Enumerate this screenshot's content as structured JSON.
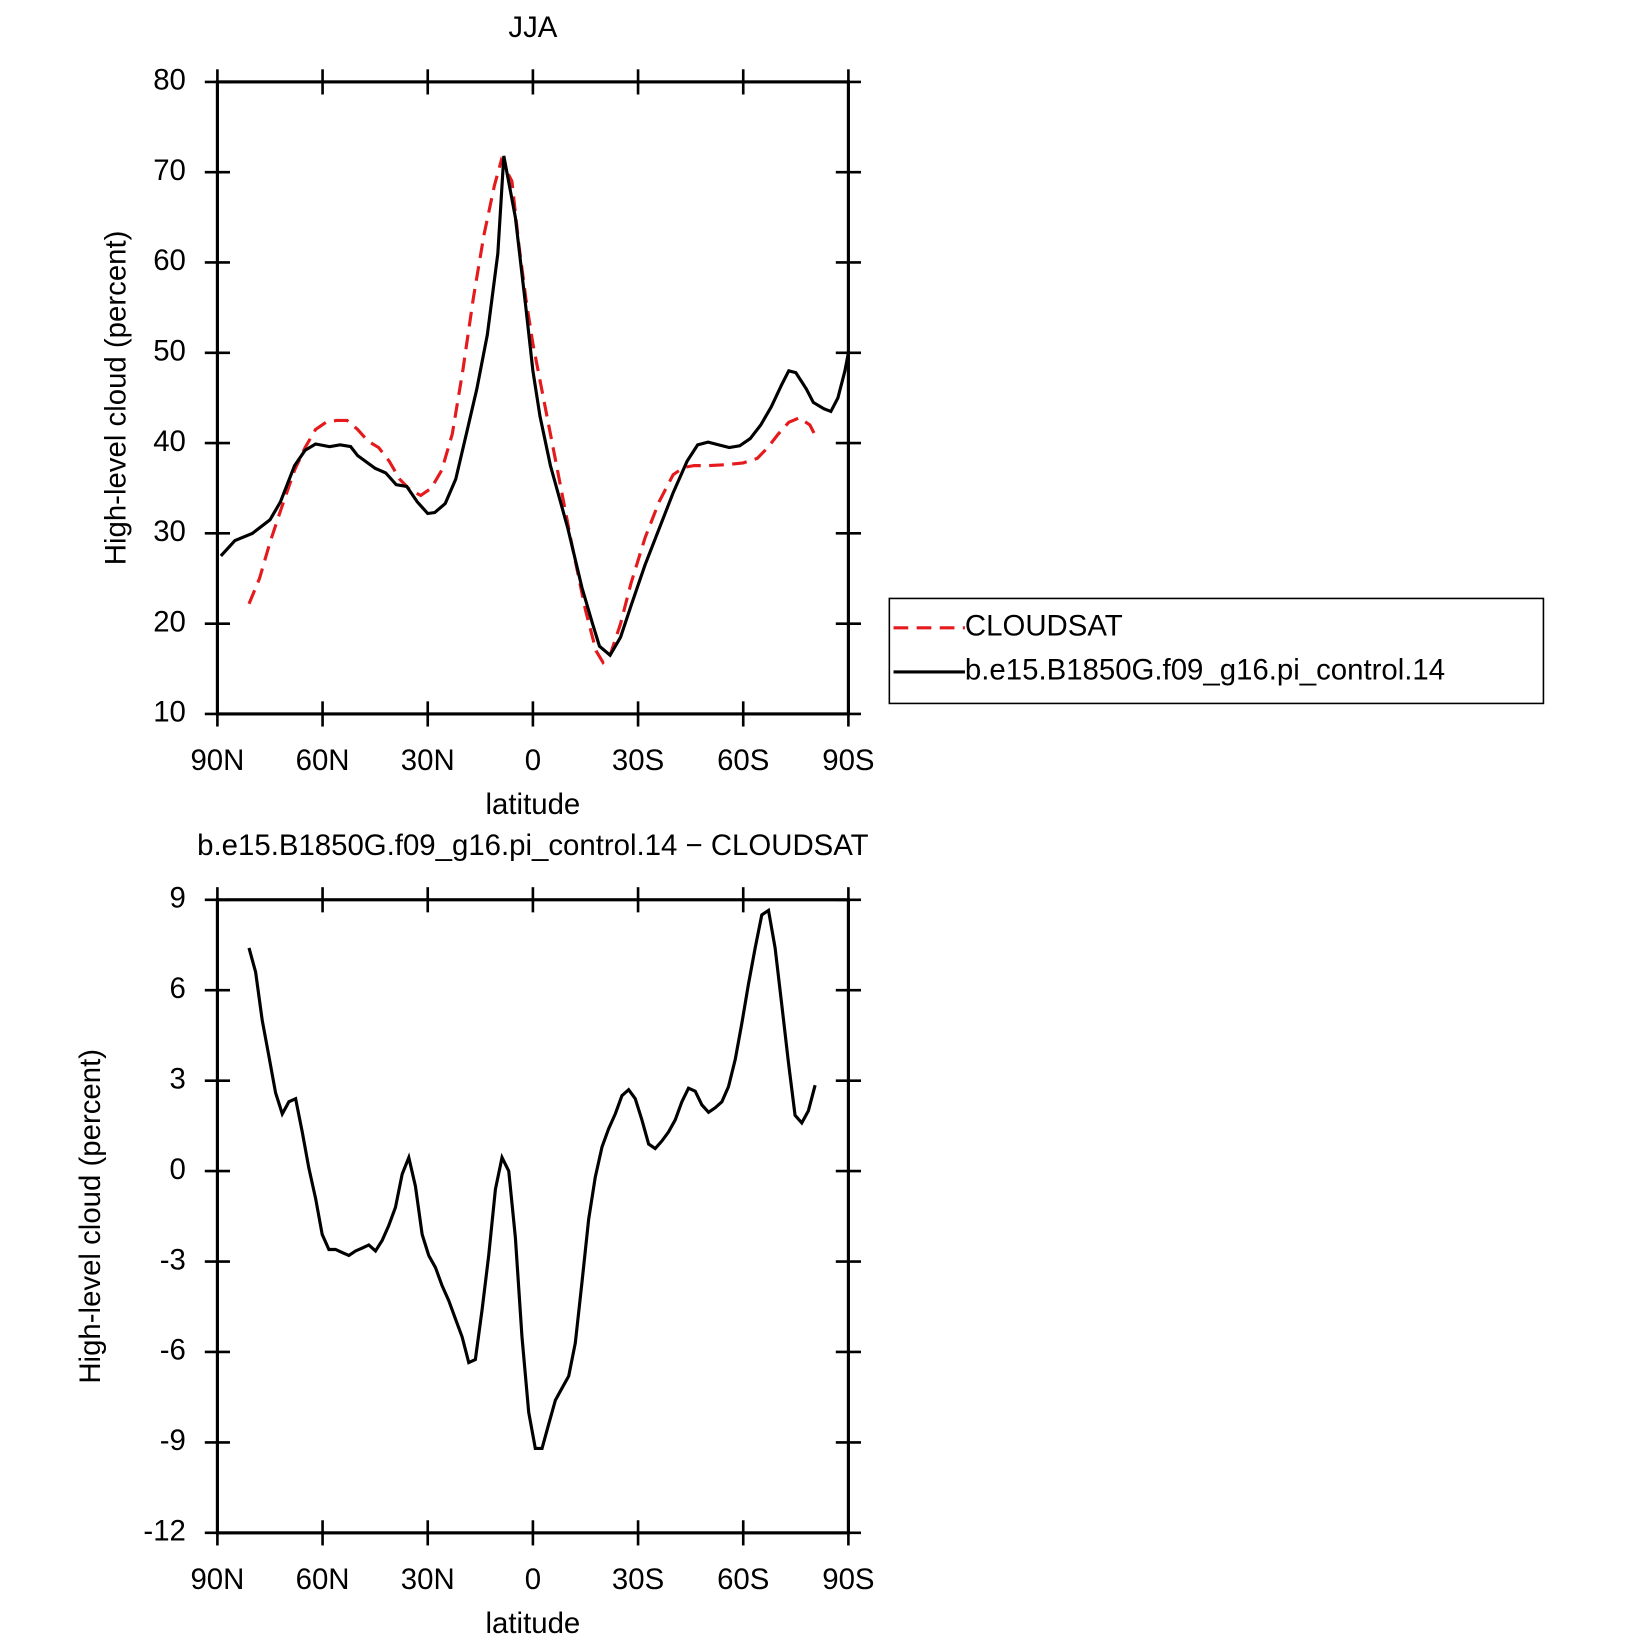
{
  "chart_data": [
    {
      "type": "line",
      "title": "JJA",
      "xlabel": "latitude",
      "ylabel": "High-level cloud (percent)",
      "xlim": [
        90,
        -90
      ],
      "xticks": [
        {
          "value": 90,
          "label": "90N"
        },
        {
          "value": 60,
          "label": "60N"
        },
        {
          "value": 30,
          "label": "30N"
        },
        0,
        {
          "value": -30,
          "label": "30S"
        },
        {
          "value": -60,
          "label": "60S"
        },
        {
          "value": -90,
          "label": "90S"
        }
      ],
      "ylim": [
        10,
        80
      ],
      "yticks": [
        10,
        20,
        30,
        40,
        50,
        60,
        70,
        80
      ],
      "legend": "right",
      "series": [
        {
          "name": "CLOUDSAT",
          "color": "#e41a1c",
          "dash": true,
          "x": [
            81,
            78,
            75,
            72,
            68,
            65,
            62,
            59,
            56,
            53,
            50,
            47,
            44,
            41,
            38,
            35,
            32,
            29,
            26,
            23,
            20,
            17,
            14,
            11,
            9,
            6,
            4,
            2,
            0,
            -3,
            -7,
            -11,
            -15,
            -18,
            -20,
            -22,
            -25,
            -28,
            -32,
            -36,
            -40,
            -43,
            -46,
            -50,
            -55,
            -60,
            -64,
            -67,
            -70,
            -73,
            -76,
            -79,
            -81
          ],
          "values": [
            22.2,
            25,
            29,
            32.5,
            37,
            39.5,
            41.5,
            42.3,
            42.5,
            42.5,
            41.5,
            40.2,
            39.5,
            38,
            36,
            34.8,
            34.2,
            35,
            37,
            41,
            48,
            56,
            63,
            68.5,
            71.3,
            69,
            62,
            56,
            51,
            45,
            37,
            29,
            21.5,
            17,
            15.7,
            16.5,
            20,
            24.5,
            29.5,
            33.5,
            36.5,
            37.3,
            37.5,
            37.5,
            37.6,
            37.8,
            38.3,
            39.5,
            41,
            42.3,
            42.8,
            42,
            40.5
          ]
        },
        {
          "name": "b.e15.B1850G.f09_g16.pi_control.14",
          "color": "#000000",
          "dash": false,
          "x": [
            89,
            85,
            80,
            75,
            72,
            68,
            65,
            62,
            58,
            55,
            52,
            50,
            45,
            42,
            39,
            36,
            33,
            30,
            28,
            25,
            22,
            19,
            16,
            13,
            10,
            8.3,
            5,
            2,
            0,
            -2,
            -5,
            -10,
            -14,
            -17,
            -19,
            -22,
            -25,
            -28,
            -32,
            -36,
            -40,
            -44,
            -47,
            -50,
            -53,
            -56,
            -59,
            -62,
            -65,
            -68,
            -71,
            -73,
            -75,
            -78,
            -80,
            -83,
            -85,
            -87,
            -89,
            -90
          ],
          "values": [
            27.5,
            29.2,
            30,
            31.5,
            33.5,
            37.5,
            39.2,
            39.9,
            39.6,
            39.8,
            39.6,
            38.6,
            37.2,
            36.7,
            35.4,
            35.2,
            33.5,
            32.2,
            32.3,
            33.3,
            36,
            41,
            46,
            52,
            61,
            71.8,
            65,
            55,
            48,
            43,
            37.5,
            30.5,
            24,
            20,
            17.5,
            16.5,
            18.5,
            22,
            26.5,
            30.5,
            34.5,
            38,
            39.8,
            40.1,
            39.8,
            39.5,
            39.7,
            40.5,
            42,
            44,
            46.5,
            48,
            47.8,
            46,
            44.5,
            43.8,
            43.5,
            45,
            48,
            50
          ]
        }
      ]
    },
    {
      "type": "line",
      "title": "b.e15.B1850G.f09_g16.pi_control.14 − CLOUDSAT",
      "xlabel": "latitude",
      "ylabel": "High-level cloud (percent)",
      "xlim": [
        90,
        -90
      ],
      "xticks": [
        {
          "value": 90,
          "label": "90N"
        },
        {
          "value": 60,
          "label": "60N"
        },
        {
          "value": 30,
          "label": "30N"
        },
        0,
        {
          "value": -30,
          "label": "30S"
        },
        {
          "value": -60,
          "label": "60S"
        },
        {
          "value": -90,
          "label": "90S"
        }
      ],
      "ylim": [
        -12,
        9
      ],
      "yticks": [
        -12,
        -9,
        -6,
        -3,
        0,
        3,
        6,
        9
      ],
      "color": "#000000",
      "x": [
        81,
        79.1,
        77.2,
        75.3,
        73.4,
        71.5,
        69.6,
        67.7,
        65.8,
        63.9,
        62,
        60.1,
        58.2,
        56.3,
        54.4,
        52.5,
        50.6,
        48.7,
        46.8,
        44.9,
        43,
        41.1,
        39.2,
        37.3,
        35.4,
        33.5,
        31.6,
        29.7,
        27.8,
        25.9,
        24,
        22.1,
        20.2,
        18.3,
        16.4,
        14.5,
        12.6,
        10.7,
        8.8,
        6.9,
        5,
        3.1,
        1.2,
        -0.7,
        -2.6,
        -4.5,
        -6.4,
        -8.3,
        -10.2,
        -12.1,
        -14,
        -15.9,
        -17.8,
        -19.7,
        -21.6,
        -23.5,
        -25.4,
        -27.3,
        -29.2,
        -31.1,
        -33,
        -34.9,
        -36.8,
        -38.7,
        -40.6,
        -42.5,
        -44.4,
        -46.3,
        -48.2,
        -50.1,
        -52,
        -53.9,
        -55.8,
        -57.7,
        -59.6,
        -61.5,
        -63.4,
        -65.3,
        -67.2,
        -69.1,
        -71,
        -72.9,
        -74.8,
        -76.7,
        -78.6,
        -80.5
      ],
      "values": [
        7.4,
        6.6,
        5.0,
        3.8,
        2.6,
        1.9,
        2.3,
        2.4,
        1.3,
        0.1,
        -0.9,
        -2.1,
        -2.6,
        -2.6,
        -2.7,
        -2.8,
        -2.65,
        -2.55,
        -2.45,
        -2.65,
        -2.3,
        -1.8,
        -1.2,
        -0.1,
        0.45,
        -0.5,
        -2.1,
        -2.8,
        -3.2,
        -3.8,
        -4.3,
        -4.9,
        -5.5,
        -6.35,
        -6.25,
        -4.6,
        -2.8,
        -0.6,
        0.45,
        0.0,
        -2.2,
        -5.5,
        -8.0,
        -9.2,
        -9.2,
        -8.4,
        -7.6,
        -7.2,
        -6.8,
        -5.7,
        -3.7,
        -1.6,
        -0.2,
        0.8,
        1.4,
        1.9,
        2.5,
        2.7,
        2.4,
        1.7,
        0.9,
        0.75,
        1.0,
        1.3,
        1.7,
        2.3,
        2.75,
        2.65,
        2.2,
        1.95,
        2.1,
        2.3,
        2.8,
        3.7,
        4.9,
        6.2,
        7.4,
        8.5,
        8.65,
        7.4,
        5.5,
        3.6,
        1.85,
        1.6,
        2.0,
        2.85
      ]
    }
  ]
}
